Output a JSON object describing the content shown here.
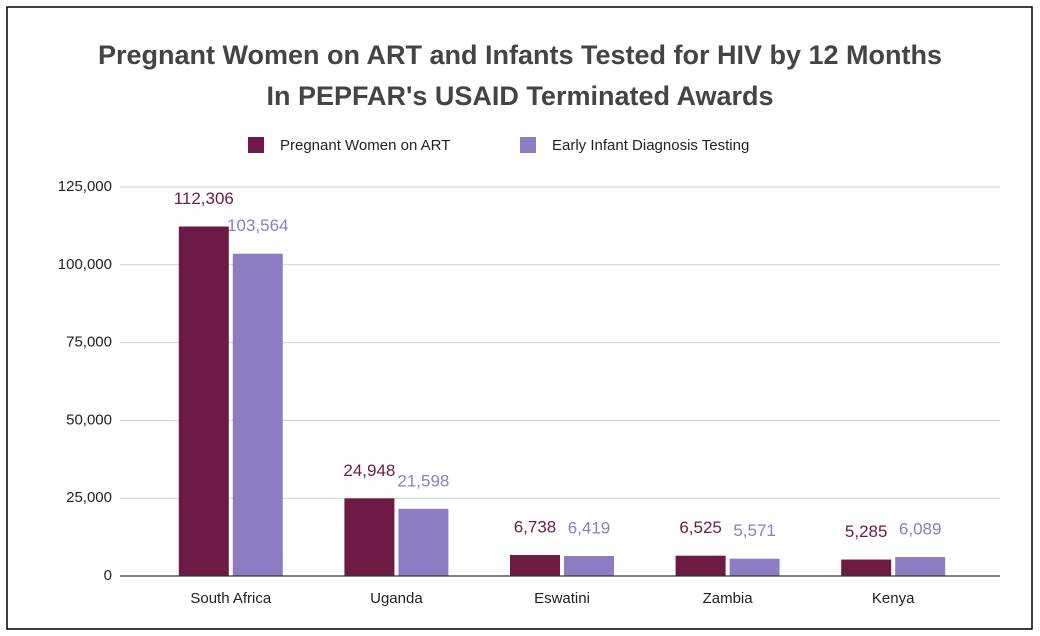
{
  "chart_data": {
    "type": "bar",
    "title": [
      "Pregnant Women on ART and Infants Tested for HIV by 12 Months",
      "In PEPFAR's USAID Terminated Awards"
    ],
    "categories": [
      "South Africa",
      "Uganda",
      "Eswatini",
      "Zambia",
      "Kenya"
    ],
    "series": [
      {
        "name": "Pregnant Women on ART",
        "color": "#6d1a44",
        "values": [
          112306,
          24948,
          6738,
          6525,
          5285
        ],
        "value_labels": [
          "112,306",
          "24,948",
          "6,738",
          "6,525",
          "5,285"
        ]
      },
      {
        "name": "Early Infant Diagnosis Testing",
        "color": "#8e7cc3",
        "values": [
          103564,
          21598,
          6419,
          5571,
          6089
        ],
        "value_labels": [
          "103,564",
          "21,598",
          "6,419",
          "5,571",
          "6,089"
        ]
      }
    ],
    "ylim": [
      0,
      125000
    ],
    "yticks": [
      0,
      {
        "value": 25000,
        "label": "25,000"
      },
      {
        "value": 50000,
        "label": "50,000"
      },
      {
        "value": 75000,
        "label": "75,000"
      },
      {
        "value": 100000,
        "label": "100,000"
      },
      {
        "value": 125000,
        "label": "125,000"
      }
    ],
    "grid": true,
    "legend": "top"
  }
}
